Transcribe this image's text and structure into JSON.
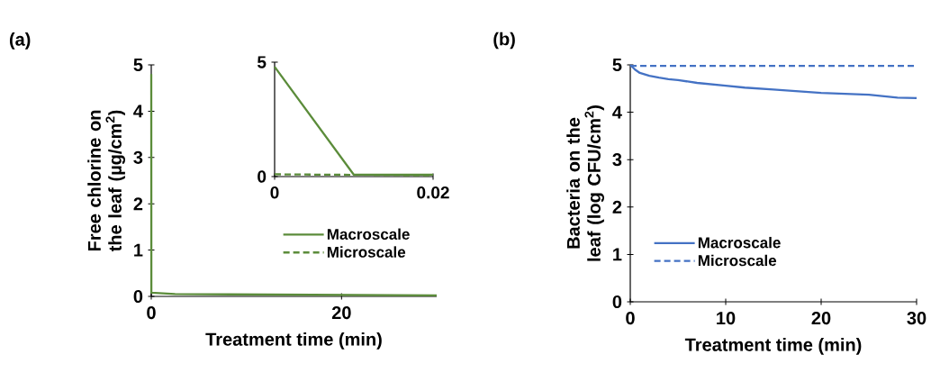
{
  "chart_data": [
    {
      "type": "line",
      "title": "(a)",
      "xlabel": "Treatment time (min)",
      "ylabel": "Free chlorine on the leaf (µg/cm$^{2}$)",
      "xlim": [
        0,
        30
      ],
      "xticks": [
        0,
        20
      ],
      "ylim": [
        0,
        5
      ],
      "yticks": [
        0,
        1,
        2,
        3,
        4,
        5
      ],
      "series": [
        {
          "color": "#5b8c3a",
          "line_style": "solid",
          "x": [
            0,
            0.01,
            2.5,
            30
          ],
          "values": [
            4.8,
            0.08,
            0.05,
            0.02
          ]
        }
      ]
    },
    {
      "type": "line",
      "xlim": [
        0,
        0.02
      ],
      "xticks": [
        0,
        0.02
      ],
      "ylim": [
        0,
        5
      ],
      "yticks": [
        0,
        5
      ],
      "legend": "bottom",
      "series": [
        {
          "name": "Macroscale",
          "color": "#5b8c3a",
          "line_style": "solid",
          "x": [
            0,
            0.01,
            0.02
          ],
          "values": [
            4.8,
            0.08,
            0.08
          ]
        },
        {
          "name": "Microscale",
          "color": "#5b8c3a",
          "line_style": "dashed",
          "x": [
            0,
            0.02
          ],
          "values": [
            0.1,
            0.05
          ]
        }
      ]
    },
    {
      "type": "line",
      "title": "(b)",
      "xlabel": "Treatment time (min)",
      "ylabel": "Bacteria on the leaf (log CFU/cm$^{2}$)",
      "xlim": [
        0,
        30
      ],
      "xticks": [
        0,
        10,
        20,
        30
      ],
      "ylim": [
        0,
        5
      ],
      "yticks": [
        0,
        1,
        2,
        3,
        4,
        5
      ],
      "legend": "bottom left",
      "series": [
        {
          "name": "Macroscale",
          "color": "#4472c4",
          "line_style": "solid",
          "x": [
            0,
            0.5,
            1,
            2,
            3,
            4,
            5,
            7,
            10,
            12,
            15,
            20,
            25,
            28,
            30
          ],
          "values": [
            5.0,
            4.9,
            4.83,
            4.77,
            4.73,
            4.7,
            4.68,
            4.62,
            4.56,
            4.52,
            4.48,
            4.41,
            4.37,
            4.31,
            4.3
          ]
        },
        {
          "name": "Microscale",
          "color": "#4472c4",
          "line_style": "dashed",
          "x": [
            0,
            30
          ],
          "values": [
            4.98,
            4.98
          ]
        }
      ]
    }
  ]
}
